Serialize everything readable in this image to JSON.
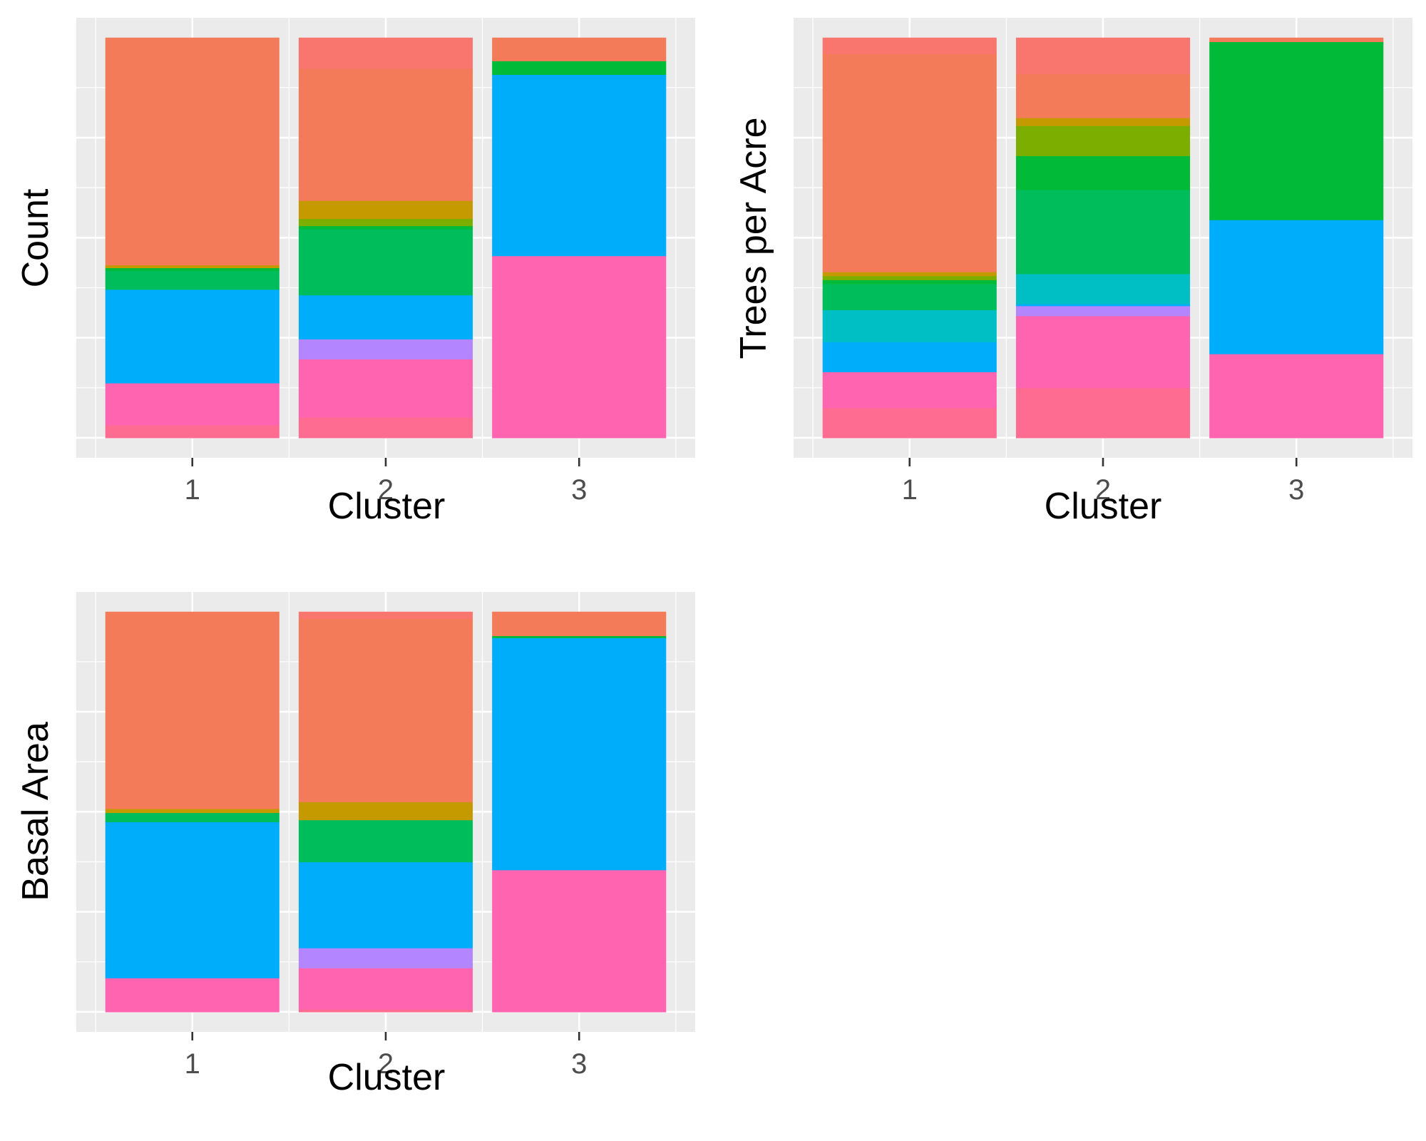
{
  "chart_data": [
    {
      "type": "bar",
      "stacked": true,
      "normalized": true,
      "xlabel": "Cluster",
      "ylabel": "Count",
      "categories": [
        "1",
        "2",
        "3"
      ],
      "ylim": [
        0,
        1
      ],
      "grid": true,
      "legend": "none",
      "stacks": [
        [
          {
            "color": "#FF6C91",
            "value": 0.032
          },
          {
            "color": "#FF64B0",
            "value": 0.105
          },
          {
            "color": "#00ADFA",
            "value": 0.234
          },
          {
            "color": "#00BD5C",
            "value": 0.047
          },
          {
            "color": "#00BA38",
            "value": 0.007
          },
          {
            "color": "#C49A00",
            "value": 0.007
          },
          {
            "color": "#F37B59",
            "value": 0.568
          }
        ],
        [
          {
            "color": "#FF6C91",
            "value": 0.052
          },
          {
            "color": "#FF64B0",
            "value": 0.145
          },
          {
            "color": "#B385FF",
            "value": 0.05
          },
          {
            "color": "#00ADFA",
            "value": 0.11
          },
          {
            "color": "#00BD5C",
            "value": 0.165
          },
          {
            "color": "#00BA38",
            "value": 0.008
          },
          {
            "color": "#7CAE00",
            "value": 0.018
          },
          {
            "color": "#C49A00",
            "value": 0.045
          },
          {
            "color": "#F37B59",
            "value": 0.33
          },
          {
            "color": "#F8766D",
            "value": 0.077
          }
        ],
        [
          {
            "color": "#FF64B0",
            "value": 0.455
          },
          {
            "color": "#00ADFA",
            "value": 0.453
          },
          {
            "color": "#00BA38",
            "value": 0.034
          },
          {
            "color": "#F37B59",
            "value": 0.058
          }
        ]
      ]
    },
    {
      "type": "bar",
      "stacked": true,
      "normalized": true,
      "xlabel": "Cluster",
      "ylabel": "Trees per Acre",
      "categories": [
        "1",
        "2",
        "3"
      ],
      "ylim": [
        0,
        1
      ],
      "grid": true,
      "legend": "none",
      "stacks": [
        [
          {
            "color": "#FF6C91",
            "value": 0.075
          },
          {
            "color": "#FF64B0",
            "value": 0.09
          },
          {
            "color": "#00ADFA",
            "value": 0.075
          },
          {
            "color": "#00BFC4",
            "value": 0.08
          },
          {
            "color": "#00BD5C",
            "value": 0.065
          },
          {
            "color": "#00BA38",
            "value": 0.01
          },
          {
            "color": "#7CAE00",
            "value": 0.01
          },
          {
            "color": "#C49A00",
            "value": 0.01
          },
          {
            "color": "#F37B59",
            "value": 0.545
          },
          {
            "color": "#F8766D",
            "value": 0.04
          }
        ],
        [
          {
            "color": "#FF6C91",
            "value": 0.125
          },
          {
            "color": "#FF64B0",
            "value": 0.18
          },
          {
            "color": "#B385FF",
            "value": 0.025
          },
          {
            "color": "#00ADFA",
            "value": 0.005
          },
          {
            "color": "#00BFC4",
            "value": 0.075
          },
          {
            "color": "#00BD5C",
            "value": 0.21
          },
          {
            "color": "#00BA38",
            "value": 0.085
          },
          {
            "color": "#7CAE00",
            "value": 0.075
          },
          {
            "color": "#C49A00",
            "value": 0.02
          },
          {
            "color": "#F37B59",
            "value": 0.11
          },
          {
            "color": "#F8766D",
            "value": 0.09
          }
        ],
        [
          {
            "color": "#FF64B0",
            "value": 0.21
          },
          {
            "color": "#00ADFA",
            "value": 0.335
          },
          {
            "color": "#00BA38",
            "value": 0.445
          },
          {
            "color": "#F37B59",
            "value": 0.01
          }
        ]
      ]
    },
    {
      "type": "bar",
      "stacked": true,
      "normalized": true,
      "xlabel": "Cluster",
      "ylabel": "Basal Area",
      "categories": [
        "1",
        "2",
        "3"
      ],
      "ylim": [
        0,
        1
      ],
      "grid": true,
      "legend": "none",
      "stacks": [
        [
          {
            "color": "#FF64B0",
            "value": 0.085
          },
          {
            "color": "#00ADFA",
            "value": 0.39
          },
          {
            "color": "#00BD5C",
            "value": 0.023
          },
          {
            "color": "#C49A00",
            "value": 0.01
          },
          {
            "color": "#F37B59",
            "value": 0.492
          }
        ],
        [
          {
            "color": "#FF6C91",
            "value": 0.007
          },
          {
            "color": "#FF64B0",
            "value": 0.103
          },
          {
            "color": "#B385FF",
            "value": 0.05
          },
          {
            "color": "#00ADFA",
            "value": 0.215
          },
          {
            "color": "#00BD5C",
            "value": 0.105
          },
          {
            "color": "#C49A00",
            "value": 0.045
          },
          {
            "color": "#F37B59",
            "value": 0.458
          },
          {
            "color": "#F8766D",
            "value": 0.017
          }
        ],
        [
          {
            "color": "#FF64B0",
            "value": 0.355
          },
          {
            "color": "#00ADFA",
            "value": 0.58
          },
          {
            "color": "#00BA38",
            "value": 0.005
          },
          {
            "color": "#F37B59",
            "value": 0.06
          }
        ]
      ]
    }
  ]
}
